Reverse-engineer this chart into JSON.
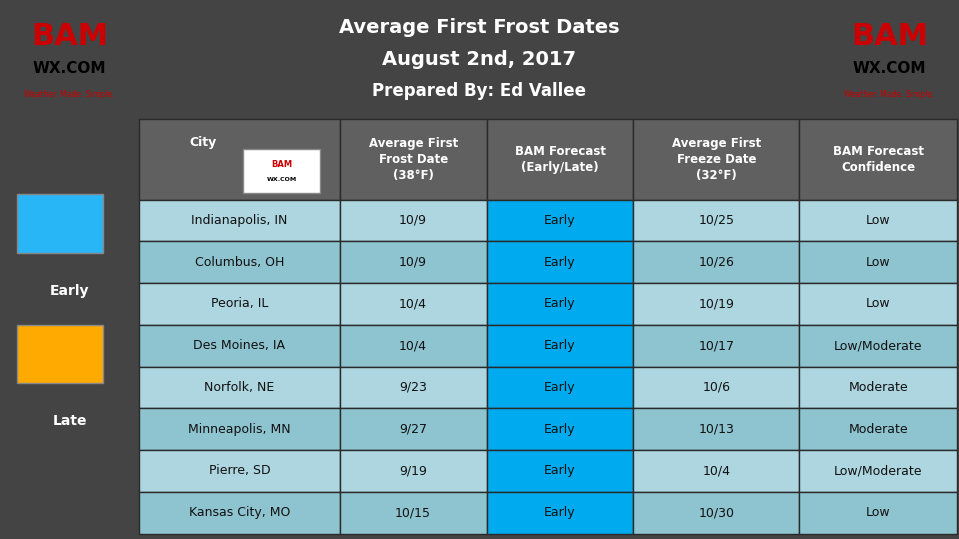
{
  "title_line1": "Average First Frost Dates",
  "title_line2": "August 2nd, 2017",
  "title_line3": "Prepared By: Ed Vallee",
  "title_bg": "#2222aa",
  "title_text_color": "#ffffff",
  "background_color": "#444444",
  "header_bg": "#606060",
  "header_text_color": "#ffffff",
  "row_bg_light": "#aed6e0",
  "row_bg_dark": "#8ec4d0",
  "early_cell_color": "#00aaee",
  "late_cell_color": "#ffaa00",
  "legend_early_color": "#29b6f6",
  "legend_late_color": "#ffaa00",
  "legend_text_color": "#ffffff",
  "col_headers": [
    "City",
    "Average First\nFrost Date\n(38°F)",
    "BAM Forecast\n(Early/Late)",
    "Average First\nFreeze Date\n(32°F)",
    "BAM Forecast\nConfidence"
  ],
  "rows": [
    [
      "Indianapolis, IN",
      "10/9",
      "Early",
      "10/25",
      "Low"
    ],
    [
      "Columbus, OH",
      "10/9",
      "Early",
      "10/26",
      "Low"
    ],
    [
      "Peoria, IL",
      "10/4",
      "Early",
      "10/19",
      "Low"
    ],
    [
      "Des Moines, IA",
      "10/4",
      "Early",
      "10/17",
      "Low/Moderate"
    ],
    [
      "Norfolk, NE",
      "9/23",
      "Early",
      "10/6",
      "Moderate"
    ],
    [
      "Minneapolis, MN",
      "9/27",
      "Early",
      "10/13",
      "Moderate"
    ],
    [
      "Pierre, SD",
      "9/19",
      "Early",
      "10/4",
      "Low/Moderate"
    ],
    [
      "Kansas City, MO",
      "10/15",
      "Early",
      "10/30",
      "Low"
    ]
  ],
  "edge_color": "#333333",
  "logo_bg": "#ffffff",
  "logo_border": "#333333"
}
